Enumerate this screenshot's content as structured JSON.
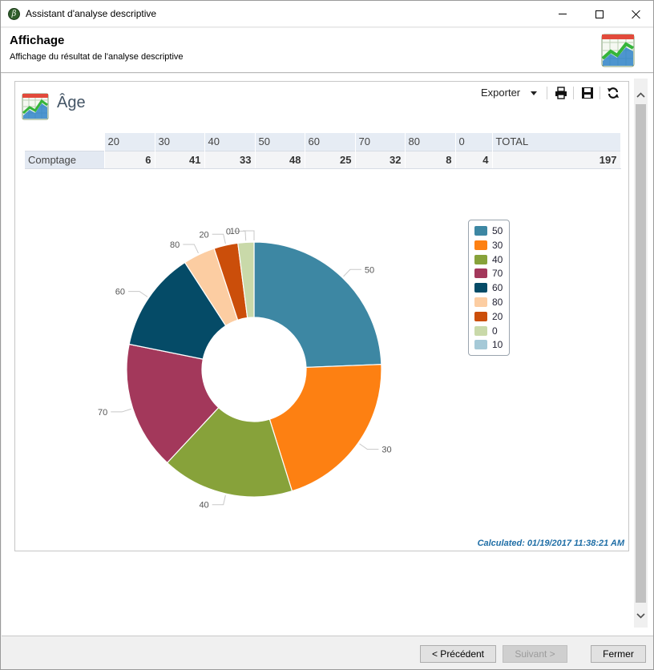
{
  "window": {
    "title": "Assistant d'analyse descriptive",
    "app_icon_glyph": "β"
  },
  "header": {
    "title": "Affichage",
    "subtitle": "Affichage du résultat de l'analyse descriptive"
  },
  "panel": {
    "title": "Âge",
    "export_label": "Exporter",
    "calculated": "Calculated: 01/19/2017 11:38:21 AM"
  },
  "table": {
    "headers": [
      "20",
      "30",
      "40",
      "50",
      "60",
      "70",
      "80",
      "0",
      "TOTAL"
    ],
    "row_label": "Comptage",
    "values": [
      "6",
      "41",
      "33",
      "48",
      "25",
      "32",
      "8",
      "4",
      "197"
    ]
  },
  "chart_data": {
    "type": "pie",
    "variant": "donut",
    "title": "",
    "slices": [
      {
        "label": "50",
        "value": 48,
        "color": "#3d87a3"
      },
      {
        "label": "30",
        "value": 41,
        "color": "#fd8012"
      },
      {
        "label": "40",
        "value": 33,
        "color": "#87a23a"
      },
      {
        "label": "70",
        "value": 32,
        "color": "#a3385b"
      },
      {
        "label": "60",
        "value": 25,
        "color": "#054b67"
      },
      {
        "label": "80",
        "value": 8,
        "color": "#fccda2"
      },
      {
        "label": "20",
        "value": 6,
        "color": "#cb4e0a"
      },
      {
        "label": "0",
        "value": 4,
        "color": "#c9d9a9"
      },
      {
        "label": "10",
        "value": 0,
        "color": "#a5c9d7"
      }
    ],
    "legend": [
      "50",
      "30",
      "40",
      "70",
      "60",
      "80",
      "20",
      "0",
      "10"
    ],
    "legend_position": "right"
  },
  "footer": {
    "prev_label": "< Précédent",
    "next_label": "Suivant >",
    "close_label": "Fermer"
  }
}
